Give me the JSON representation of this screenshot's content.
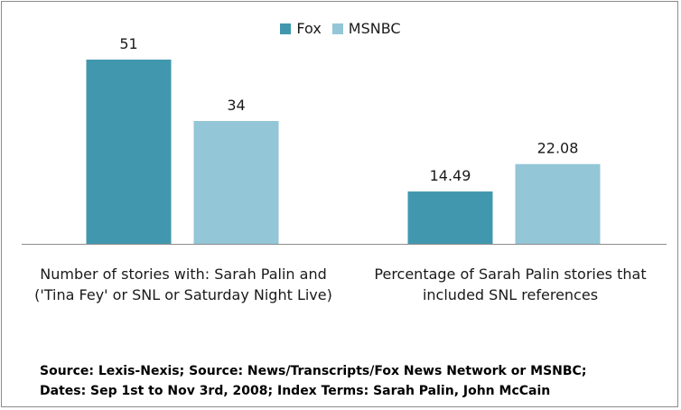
{
  "chart_data": {
    "type": "bar",
    "categories": [
      "Number of stories with: Sarah Palin and ('Tina Fey' or SNL or Saturday Night Live)",
      "Percentage of Sarah Palin stories that included SNL references"
    ],
    "category_lines": [
      [
        "Number of stories with: Sarah Palin and",
        "('Tina Fey' or SNL or Saturday Night Live)"
      ],
      [
        "Percentage of Sarah Palin stories that",
        "included SNL references"
      ]
    ],
    "series": [
      {
        "name": "Fox",
        "values": [
          51,
          14.49
        ],
        "labels": [
          "51",
          "14.49"
        ],
        "color": "#4198ae"
      },
      {
        "name": "MSNBC",
        "values": [
          34,
          22.08
        ],
        "labels": [
          "34",
          "22.08"
        ],
        "color": "#93c6d6"
      }
    ],
    "ylim": [
      0,
      60
    ],
    "grid": false,
    "legend_position": "top-center",
    "title": "",
    "xlabel": "",
    "ylabel": ""
  },
  "source": {
    "line1": "Source: Lexis-Nexis; Source: News/Transcripts/Fox News Network or MSNBC;",
    "line2": "Dates: Sep 1st to Nov 3rd, 2008; Index Terms: Sarah Palin, John McCain"
  }
}
